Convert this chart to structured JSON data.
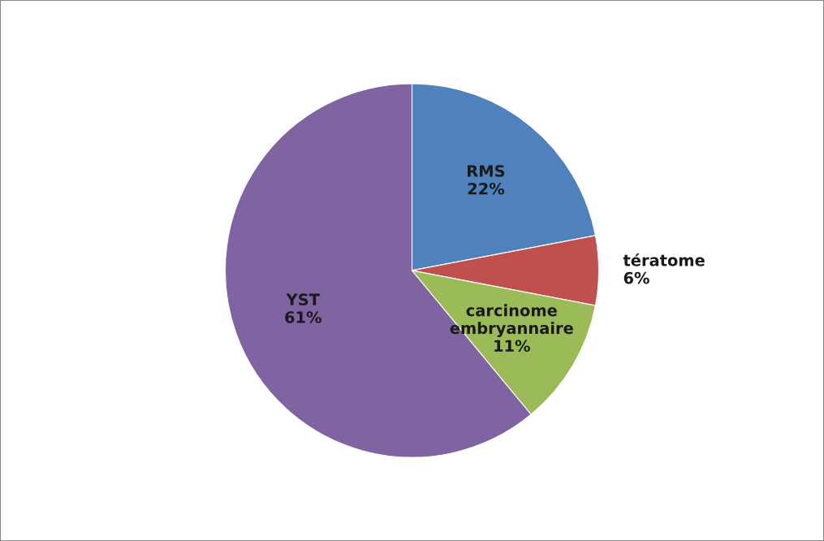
{
  "chart_data": {
    "type": "pie",
    "categories": [
      "RMS",
      "tératome",
      "carcinome embryannaire",
      "YST"
    ],
    "values": [
      22,
      6,
      11,
      61
    ],
    "value_labels": [
      "22%",
      "6%",
      "11%",
      "61%"
    ],
    "colors": [
      "#4f81bd",
      "#c0504d",
      "#9bbb59",
      "#8064a2"
    ],
    "legend": false
  }
}
